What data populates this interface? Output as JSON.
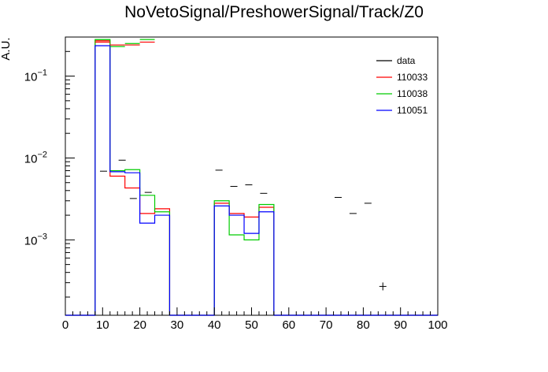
{
  "chart_data": {
    "type": "bar",
    "title": "NoVetoSignal/PreshowerSignal/Track/Z0",
    "xlabel": "",
    "ylabel": "A.U.",
    "xlim": [
      0,
      100
    ],
    "ylim": [
      0.00012,
      0.3
    ],
    "yscale": "log",
    "xticks": [
      "0",
      "10",
      "20",
      "30",
      "40",
      "50",
      "60",
      "70",
      "80",
      "90",
      "100"
    ],
    "yticks": [
      {
        "base": "10",
        "exp": "−1",
        "value": 0.1
      },
      {
        "base": "10",
        "exp": "−2",
        "value": 0.01
      },
      {
        "base": "10",
        "exp": "−3",
        "value": 0.001
      }
    ],
    "bin_edges": [
      0,
      4,
      8,
      12,
      16,
      20,
      24,
      28,
      32,
      36,
      40,
      44,
      48,
      52,
      56,
      60,
      64,
      68,
      72,
      76,
      80,
      84,
      88,
      92,
      96,
      100
    ],
    "legend_position": "top-right",
    "series": [
      {
        "name": "110033",
        "color": "#ff0000",
        "values": [
          0,
          0,
          0.27,
          0.006,
          0.0043,
          0.0021,
          0.0024,
          0,
          0,
          0,
          0.0028,
          0.0021,
          0.0019,
          0.0025,
          0,
          0,
          0,
          0,
          0,
          0,
          0,
          0,
          0,
          0,
          0
        ]
      },
      {
        "name": "110038",
        "color": "#00cc00",
        "values": [
          0,
          0,
          0.28,
          0.007,
          0.0072,
          0.0035,
          0.0022,
          0,
          0,
          0,
          0.003,
          0.00115,
          0.001,
          0.0027,
          0,
          0,
          0,
          0,
          0,
          0,
          0,
          0,
          0,
          0,
          0
        ]
      },
      {
        "name": "110051",
        "color": "#0000ff",
        "values": [
          0,
          0,
          0.235,
          0.0068,
          0.0066,
          0.0016,
          0.002,
          0,
          0,
          0,
          0.0026,
          0.002,
          0.0012,
          0.0022,
          0,
          0,
          0,
          0,
          0,
          0,
          0,
          0,
          0,
          0,
          0
        ]
      }
    ],
    "overlay_series": [
      {
        "name": "110033",
        "color": "#ff0000",
        "values": [
          0.26,
          0.24,
          0.24,
          0.26
        ]
      },
      {
        "name": "110038",
        "color": "#00cc00",
        "values": [
          0.28,
          0.23,
          0.25,
          0.28
        ]
      }
    ],
    "data": {
      "name": "data",
      "color": "#000000",
      "points": [
        {
          "x": 10.25,
          "y": 0.0069
        },
        {
          "x": 15.25,
          "y": 0.0094
        },
        {
          "x": 18.25,
          "y": 0.0032
        },
        {
          "x": 22.25,
          "y": 0.0038
        },
        {
          "x": 41.25,
          "y": 0.0071
        },
        {
          "x": 45.25,
          "y": 0.0045
        },
        {
          "x": 49.25,
          "y": 0.0047
        },
        {
          "x": 53.25,
          "y": 0.0037
        },
        {
          "x": 73.25,
          "y": 0.0033
        },
        {
          "x": 77.25,
          "y": 0.0021
        },
        {
          "x": 81.25,
          "y": 0.0028
        },
        {
          "x": 85.25,
          "y": 0.00027
        }
      ]
    },
    "legend": [
      "data",
      "110033",
      "110038",
      "110051"
    ]
  }
}
